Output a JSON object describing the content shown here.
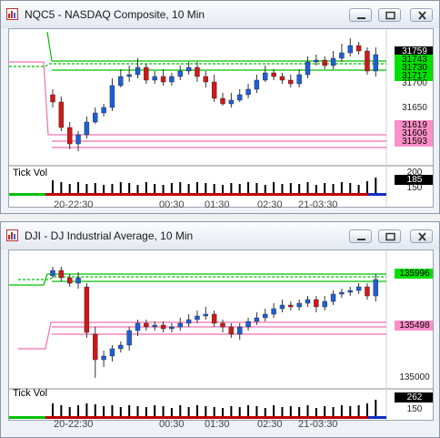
{
  "windows": [
    {
      "title": "NQC5 - NASDAQ Composite, 10 Min",
      "price_scale": {
        "right_labels": [
          "31759",
          "31743",
          "31730",
          "31717",
          "31700",
          "31650",
          "31619",
          "31606",
          "31593"
        ]
      },
      "volume_pane": {
        "label": "Tick Vol",
        "scale_labels": [
          "200",
          "185",
          "150"
        ]
      },
      "x_axis_labels": [
        "20-22:30",
        "00:30",
        "01:30",
        "02:30",
        "21-03:30"
      ]
    },
    {
      "title": "DJI - DJ Industrial Average, 10 Min",
      "price_scale": {
        "right_labels": [
          "135996",
          "135498",
          "135000"
        ]
      },
      "volume_pane": {
        "label": "Tick Vol",
        "scale_labels": [
          "262",
          "150"
        ]
      },
      "x_axis_labels": [
        "20-22:30",
        "00:30",
        "01:30",
        "02:30",
        "21-03:30"
      ]
    }
  ],
  "colors": {
    "up_candle": "#1f5fd6",
    "down_candle": "#d01818",
    "resistance_line": "#00c000",
    "support_line": "#f070b0",
    "volume_bar": "#000000"
  },
  "icons": {
    "title": "chart-app-icon",
    "minimize": "minimize-icon",
    "maximize": "maximize-icon",
    "close": "close-icon"
  }
}
